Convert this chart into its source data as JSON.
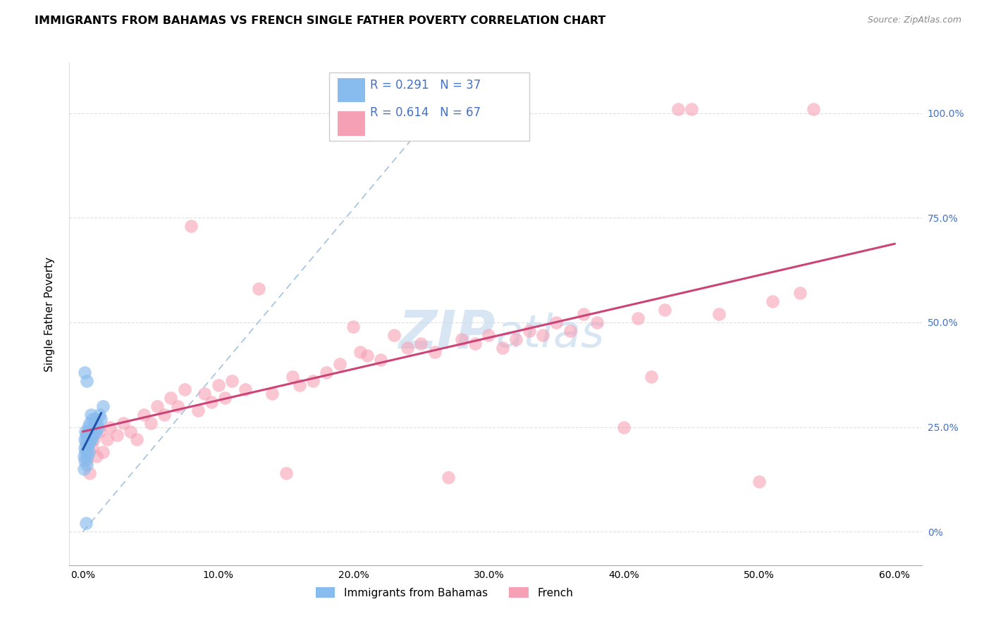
{
  "title": "IMMIGRANTS FROM BAHAMAS VS FRENCH SINGLE FATHER POVERTY CORRELATION CHART",
  "source": "Source: ZipAtlas.com",
  "ylabel": "Single Father Poverty",
  "color_blue": "#88BBEE",
  "color_blue_line": "#2255AA",
  "color_pink": "#F5A0B5",
  "color_pink_line": "#CC4477",
  "color_dashed": "#99BBDD",
  "watermark_color": "#C8DCF0",
  "legend_label1": "Immigrants from Bahamas",
  "legend_label2": "French",
  "r1": "0.291",
  "n1": "37",
  "r2": "0.614",
  "n2": "67",
  "bahamas_x": [
    0.05,
    0.08,
    0.1,
    0.12,
    0.15,
    0.18,
    0.2,
    0.22,
    0.25,
    0.28,
    0.3,
    0.32,
    0.35,
    0.38,
    0.4,
    0.42,
    0.45,
    0.48,
    0.5,
    0.52,
    0.55,
    0.6,
    0.65,
    0.7,
    0.75,
    0.8,
    0.85,
    0.9,
    0.95,
    1.0,
    1.1,
    1.2,
    1.3,
    1.5,
    0.15,
    0.3,
    0.25
  ],
  "bahamas_y": [
    15,
    18,
    20,
    22,
    17,
    24,
    19,
    21,
    23,
    16,
    22,
    20,
    18,
    25,
    24,
    21,
    19,
    23,
    26,
    22,
    24,
    28,
    22,
    27,
    23,
    25,
    24,
    27,
    24,
    26,
    25,
    28,
    27,
    30,
    38,
    36,
    2
  ],
  "french_x": [
    0.3,
    0.5,
    0.7,
    0.8,
    1.0,
    1.2,
    1.5,
    1.8,
    2.0,
    2.5,
    3.0,
    3.5,
    4.0,
    4.5,
    5.0,
    5.5,
    6.0,
    6.5,
    7.0,
    7.5,
    8.0,
    8.5,
    9.0,
    9.5,
    10.0,
    10.5,
    11.0,
    12.0,
    13.0,
    14.0,
    15.0,
    15.5,
    16.0,
    17.0,
    18.0,
    19.0,
    20.0,
    20.5,
    21.0,
    22.0,
    23.0,
    24.0,
    25.0,
    26.0,
    27.0,
    28.0,
    29.0,
    30.0,
    31.0,
    32.0,
    33.0,
    34.0,
    35.0,
    36.0,
    37.0,
    38.0,
    40.0,
    41.0,
    43.0,
    44.0,
    45.0,
    47.0,
    50.0,
    51.0,
    53.0,
    42.0,
    54.0
  ],
  "french_y": [
    17,
    14,
    20,
    22,
    18,
    24,
    19,
    22,
    25,
    23,
    26,
    24,
    22,
    28,
    26,
    30,
    28,
    32,
    30,
    34,
    73,
    29,
    33,
    31,
    35,
    32,
    36,
    34,
    58,
    33,
    14,
    37,
    35,
    36,
    38,
    40,
    49,
    43,
    42,
    41,
    47,
    44,
    45,
    43,
    13,
    46,
    45,
    47,
    44,
    46,
    48,
    47,
    50,
    48,
    52,
    50,
    25,
    51,
    53,
    101,
    101,
    52,
    12,
    55,
    57,
    37,
    101
  ]
}
